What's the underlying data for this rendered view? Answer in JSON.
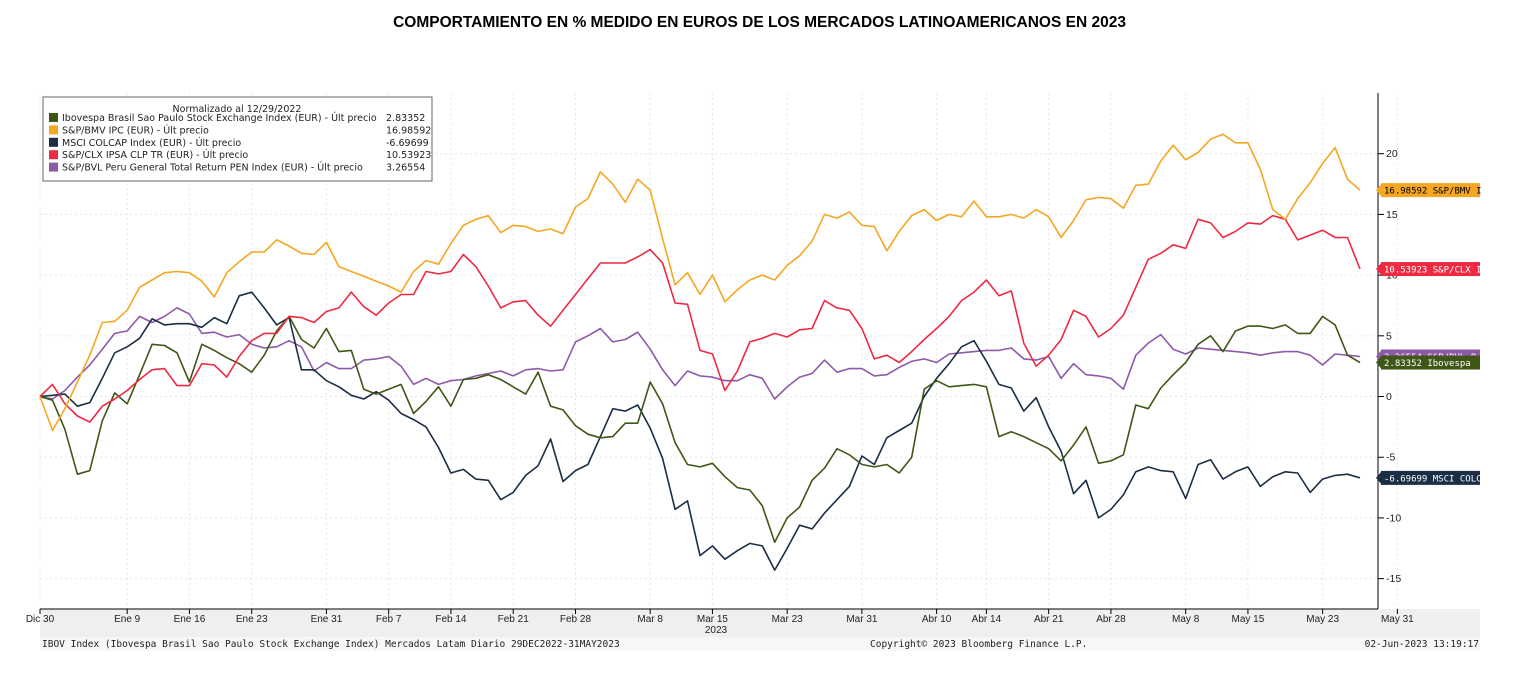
{
  "title": "COMPORTAMIENTO EN %  MEDIDO EN EUROS DE LOS MERCADOS LATINOAMERICANOS EN 2023",
  "chart_data": {
    "type": "line",
    "title": "COMPORTAMIENTO EN %  MEDIDO EN EUROS DE LOS MERCADOS LATINOAMERICANOS EN 2023",
    "legend_header": "Normalizado al 12/29/2022",
    "legend_position": "top-left",
    "ylim": [
      -17.5,
      25
    ],
    "y_ticks": [
      20,
      15,
      10,
      5,
      0,
      -5,
      -10,
      -15
    ],
    "y_tick_labels": [
      "20",
      "15",
      "10",
      "5",
      "0",
      "-5",
      "-10",
      "-15"
    ],
    "x_ticks": [
      "Dic 30",
      "Ene 9",
      "Ene 16",
      "Ene 23",
      "Ene 31",
      "Feb 7",
      "Feb 14",
      "Feb 21",
      "Feb 28",
      "Mar 8",
      "Mar 15",
      "Mar 23",
      "Mar 31",
      "Abr 10",
      "Abr 14",
      "Abr 21",
      "Abr 28",
      "May 8",
      "May 15",
      "May 23",
      "May 31"
    ],
    "x_tick_index": [
      0,
      7,
      12,
      17,
      23,
      28,
      33,
      38,
      43,
      49,
      54,
      60,
      66,
      72,
      76,
      81,
      86,
      92,
      97,
      103,
      109
    ],
    "x_year_label": "2023",
    "grid": true,
    "series": [
      {
        "name": "Ibovespa",
        "legend_label": "Ibovespa Brasil Sao Paulo Stock Exchange Index (EUR) - Últ precio",
        "last_value": "2.83352",
        "badge_label": "2.83352  Ibovespa",
        "color": "#3f5716",
        "values": [
          0,
          -0.3,
          -2.7,
          -6.4,
          -6.1,
          -2.0,
          0.3,
          -0.6,
          1.8,
          4.3,
          4.2,
          3.6,
          1.2,
          4.3,
          3.8,
          3.2,
          2.7,
          2.0,
          3.4,
          5.4,
          6.6,
          4.7,
          4.0,
          5.6,
          3.7,
          3.8,
          0.6,
          0.2,
          0.6,
          1.0,
          -1.4,
          -0.4,
          0.8,
          -0.8,
          1.4,
          1.5,
          1.8,
          1.4,
          0.8,
          0.2,
          2.0,
          -0.8,
          -1.1,
          -2.4,
          -3.1,
          -3.4,
          -3.3,
          -2.2,
          -2.2,
          1.2,
          -0.6,
          -3.8,
          -5.6,
          -5.8,
          -5.5,
          -6.6,
          -7.5,
          -7.7,
          -9.0,
          -12.0,
          -10.0,
          -9.1,
          -6.9,
          -5.9,
          -4.3,
          -4.8,
          -5.6,
          -5.8,
          -5.6,
          -6.3,
          -5.0,
          0.6,
          1.3,
          0.8,
          0.9,
          1.0,
          0.8,
          -3.3,
          -2.9,
          -3.3,
          -3.8,
          -4.3,
          -5.3,
          -4.0,
          -2.5,
          -5.5,
          -5.3,
          -4.8,
          -0.7,
          -1.0,
          0.7,
          1.8,
          2.8,
          4.3,
          5.0,
          3.7,
          5.4,
          5.8,
          5.8,
          5.6,
          5.9,
          5.2,
          5.2,
          6.6,
          5.9,
          3.4,
          2.8
        ]
      },
      {
        "name": "S&P/BMV IPC",
        "legend_label": "S&P/BMV IPC (EUR) - Últ precio",
        "last_value": "16.98592",
        "badge_label": "16.98592 S&P/BMV I",
        "color": "#f5a623",
        "values": [
          0,
          -2.8,
          -1.0,
          1.2,
          3.4,
          6.1,
          6.2,
          7.1,
          9.0,
          9.6,
          10.2,
          10.3,
          10.2,
          9.5,
          8.2,
          10.2,
          11.1,
          11.9,
          11.9,
          12.9,
          12.4,
          11.8,
          11.7,
          12.7,
          10.7,
          10.3,
          9.9,
          9.5,
          9.1,
          8.6,
          10.3,
          11.2,
          10.9,
          12.6,
          14.1,
          14.6,
          14.9,
          13.5,
          14.1,
          14.0,
          13.6,
          13.8,
          13.4,
          15.6,
          16.3,
          18.5,
          17.5,
          16.0,
          17.9,
          17.0,
          13.0,
          9.2,
          10.2,
          8.4,
          10.0,
          7.8,
          8.8,
          9.6,
          10.0,
          9.6,
          10.8,
          11.6,
          12.8,
          15.0,
          14.7,
          15.2,
          14.1,
          14.0,
          12.0,
          13.6,
          14.9,
          15.4,
          14.5,
          15.0,
          14.8,
          16.1,
          14.8,
          14.8,
          15.0,
          14.7,
          15.4,
          14.8,
          13.1,
          14.5,
          16.2,
          16.4,
          16.3,
          15.5,
          17.4,
          17.5,
          19.4,
          20.7,
          19.5,
          20.1,
          21.2,
          21.6,
          20.9,
          20.9,
          18.7,
          15.4,
          14.6,
          16.3,
          17.6,
          19.2,
          20.5,
          17.9,
          17.0
        ]
      },
      {
        "name": "MSCI COLCAP",
        "legend_label": "MSCI COLCAP Index (EUR) - Últ precio",
        "last_value": "-6.69699",
        "badge_label": "-6.69699 MSCI COLC",
        "color": "#1a2e45",
        "values": [
          0,
          0.1,
          0.2,
          -0.8,
          -0.5,
          1.5,
          3.6,
          4.1,
          4.8,
          6.4,
          5.9,
          6.0,
          6.0,
          5.7,
          6.5,
          6.0,
          8.3,
          8.6,
          7.3,
          5.9,
          6.5,
          2.2,
          2.2,
          1.3,
          0.8,
          0.1,
          -0.2,
          0.4,
          -0.3,
          -1.4,
          -1.9,
          -2.5,
          -4.2,
          -6.3,
          -6.0,
          -6.8,
          -6.9,
          -8.5,
          -7.9,
          -6.5,
          -5.7,
          -3.5,
          -7.0,
          -6.1,
          -5.6,
          -3.3,
          -1.0,
          -1.2,
          -0.7,
          -2.6,
          -5.1,
          -9.3,
          -8.6,
          -13.1,
          -12.3,
          -13.4,
          -12.7,
          -12.1,
          -12.3,
          -14.3,
          -12.5,
          -10.6,
          -10.9,
          -9.6,
          -8.5,
          -7.4,
          -4.9,
          -5.6,
          -3.4,
          -2.8,
          -2.2,
          0.0,
          1.5,
          2.7,
          4.1,
          4.6,
          2.9,
          1.0,
          0.7,
          -1.2,
          -0.1,
          -2.5,
          -4.5,
          -8.0,
          -6.9,
          -10.0,
          -9.3,
          -8.1,
          -6.2,
          -5.8,
          -6.1,
          -6.2,
          -8.4,
          -5.6,
          -5.2,
          -6.8,
          -6.2,
          -5.8,
          -7.4,
          -6.6,
          -6.2,
          -6.3,
          -7.9,
          -6.8,
          -6.5,
          -6.4,
          -6.7
        ]
      },
      {
        "name": "S&P/CLX IPSA",
        "legend_label": "S&P/CLX IPSA CLP TR (EUR) - Últ precio",
        "last_value": "10.53923",
        "badge_label": "10.53923 S&P/CLX I",
        "color": "#ee2a43",
        "values": [
          0,
          1.0,
          -0.6,
          -1.6,
          -2.1,
          -0.8,
          -0.2,
          0.5,
          1.4,
          2.2,
          2.3,
          0.9,
          0.9,
          2.7,
          2.6,
          1.6,
          3.3,
          4.6,
          5.2,
          5.2,
          6.6,
          6.5,
          6.1,
          7.0,
          7.3,
          8.6,
          7.4,
          6.7,
          7.7,
          8.4,
          8.4,
          10.3,
          10.1,
          10.3,
          11.7,
          10.7,
          9.1,
          7.3,
          7.8,
          7.9,
          6.7,
          5.8,
          7.1,
          8.4,
          9.7,
          11.0,
          11.0,
          11.0,
          11.5,
          12.1,
          11.0,
          7.7,
          7.6,
          3.8,
          3.5,
          0.5,
          2.1,
          4.5,
          4.8,
          5.2,
          4.9,
          5.5,
          5.6,
          7.9,
          7.3,
          7.1,
          5.6,
          3.1,
          3.4,
          2.8,
          3.7,
          4.7,
          5.6,
          6.6,
          7.9,
          8.6,
          9.6,
          8.3,
          8.7,
          4.4,
          2.5,
          3.4,
          4.7,
          7.1,
          6.6,
          4.9,
          5.6,
          6.7,
          9.0,
          11.3,
          11.8,
          12.5,
          12.2,
          14.6,
          14.3,
          13.1,
          13.6,
          14.3,
          14.2,
          14.9,
          14.6,
          12.9,
          13.3,
          13.7,
          13.1,
          13.1,
          10.5
        ]
      },
      {
        "name": "S&P/BVL Peru",
        "legend_label": "S&P/BVL Peru General Total Return PEN Index (EUR) - Últ precio",
        "last_value": "3.26554",
        "badge_label": "3.26554 S&P/BVL P",
        "color": "#8e5aa8",
        "values": [
          0,
          -0.2,
          0.5,
          1.6,
          2.6,
          3.9,
          5.2,
          5.4,
          6.6,
          6.1,
          6.6,
          7.3,
          6.8,
          5.2,
          5.3,
          4.9,
          5.1,
          4.3,
          4.0,
          4.1,
          4.6,
          4.1,
          2.1,
          2.8,
          2.3,
          2.3,
          3.0,
          3.1,
          3.3,
          2.5,
          1.0,
          1.5,
          1.0,
          1.3,
          1.4,
          1.7,
          1.9,
          2.1,
          1.7,
          2.2,
          2.3,
          2.1,
          2.2,
          4.5,
          5.0,
          5.6,
          4.5,
          4.7,
          5.3,
          3.9,
          2.2,
          0.9,
          2.1,
          1.7,
          1.6,
          1.3,
          1.3,
          1.8,
          1.5,
          -0.2,
          0.8,
          1.6,
          1.9,
          3.0,
          2.0,
          2.3,
          2.3,
          1.7,
          1.8,
          2.4,
          2.9,
          3.1,
          2.8,
          3.5,
          3.6,
          3.7,
          3.8,
          3.8,
          4.0,
          3.1,
          3.0,
          3.3,
          1.5,
          2.7,
          1.8,
          1.7,
          1.5,
          0.6,
          3.4,
          4.4,
          5.1,
          3.9,
          3.5,
          4.0,
          3.9,
          3.8,
          3.7,
          3.6,
          3.4,
          3.6,
          3.7,
          3.7,
          3.4,
          2.6,
          3.5,
          3.4,
          3.3
        ]
      }
    ]
  },
  "footer": {
    "year": "2023",
    "left": "IBOV Index (Ibovespa Brasil Sao Paulo Stock Exchange Index) Mercados Latam  Diario 29DEC2022-31MAY2023",
    "center": "Copyright© 2023 Bloomberg Finance L.P.",
    "right": "02-Jun-2023 13:19:17"
  }
}
